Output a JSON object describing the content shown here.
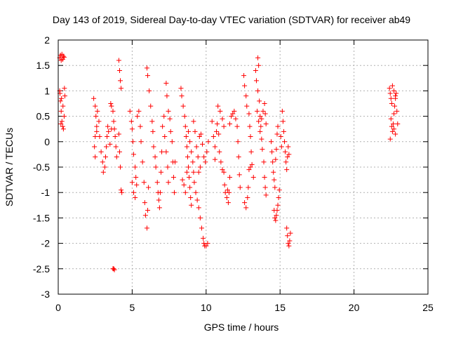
{
  "chart_data": {
    "type": "scatter",
    "title": "Day 143 of 2019, Sidereal Day-to-day VTEC variation (SDTVAR) for receiver ab49",
    "xlabel": "GPS time / hours",
    "ylabel": "SDTVAR / TECUs",
    "xlim": [
      0,
      25
    ],
    "ylim": [
      -3,
      2
    ],
    "xticks": [
      0,
      5,
      10,
      15,
      20,
      25
    ],
    "yticks": [
      -3,
      -2.5,
      -2,
      -1.5,
      -1,
      -0.5,
      0,
      0.5,
      1,
      1.5,
      2
    ],
    "xtick_labels": [
      "0",
      "5",
      "10",
      "15",
      "20",
      "25"
    ],
    "ytick_labels": [
      "-3",
      "-2.5",
      "-2",
      "-1.5",
      "-1",
      "-0.5",
      "0",
      "0.5",
      "1",
      "1.5",
      "2"
    ],
    "grid": true,
    "marker": "+",
    "color": "#ff0000",
    "series": [
      {
        "name": "SDTVAR",
        "points": [
          [
            0.1,
            1.65
          ],
          [
            0.15,
            1.7
          ],
          [
            0.2,
            1.6
          ],
          [
            0.25,
            1.72
          ],
          [
            0.3,
            1.62
          ],
          [
            0.35,
            1.68
          ],
          [
            0.4,
            1.66
          ],
          [
            0.1,
            1.0
          ],
          [
            0.15,
            0.8
          ],
          [
            0.2,
            0.6
          ],
          [
            0.25,
            0.4
          ],
          [
            0.3,
            0.3
          ],
          [
            0.35,
            0.25
          ],
          [
            0.4,
            0.5
          ],
          [
            0.45,
            0.9
          ],
          [
            0.12,
            0.95
          ],
          [
            0.22,
            0.85
          ],
          [
            0.32,
            0.7
          ],
          [
            0.42,
            1.05
          ],
          [
            0.18,
            0.35
          ],
          [
            2.4,
            0.85
          ],
          [
            2.5,
            0.7
          ],
          [
            2.55,
            0.5
          ],
          [
            2.6,
            0.3
          ],
          [
            2.5,
            0.1
          ],
          [
            2.45,
            -0.1
          ],
          [
            2.5,
            -0.3
          ],
          [
            2.6,
            0.2
          ],
          [
            2.65,
            0.6
          ],
          [
            2.75,
            0.4
          ],
          [
            2.8,
            0.1
          ],
          [
            2.9,
            -0.2
          ],
          [
            3.0,
            -0.4
          ],
          [
            3.05,
            -0.6
          ],
          [
            3.15,
            -0.5
          ],
          [
            3.2,
            -0.3
          ],
          [
            3.25,
            -0.1
          ],
          [
            3.3,
            0.1
          ],
          [
            3.35,
            0.3
          ],
          [
            3.4,
            0.2
          ],
          [
            3.5,
            -0.05
          ],
          [
            3.6,
            0.25
          ],
          [
            3.55,
            0.75
          ],
          [
            3.6,
            0.7
          ],
          [
            3.7,
            0.6
          ],
          [
            3.75,
            0.4
          ],
          [
            3.8,
            0.25
          ],
          [
            3.85,
            0.1
          ],
          [
            3.9,
            -0.1
          ],
          [
            3.95,
            -0.3
          ],
          [
            3.7,
            -2.5
          ],
          [
            3.75,
            -2.5
          ],
          [
            3.8,
            -2.52
          ],
          [
            4.1,
            1.6
          ],
          [
            4.15,
            1.4
          ],
          [
            4.2,
            1.2
          ],
          [
            4.25,
            1.05
          ],
          [
            4.1,
            0.15
          ],
          [
            4.15,
            -0.2
          ],
          [
            4.2,
            -0.5
          ],
          [
            4.25,
            -0.95
          ],
          [
            4.3,
            -1.0
          ],
          [
            4.85,
            0.6
          ],
          [
            4.95,
            0.4
          ],
          [
            5.0,
            0.25
          ],
          [
            5.05,
            0.0
          ],
          [
            5.1,
            -0.25
          ],
          [
            5.2,
            -0.5
          ],
          [
            5.25,
            -0.7
          ],
          [
            5.3,
            -0.85
          ],
          [
            5.0,
            -0.8
          ],
          [
            5.1,
            -1.0
          ],
          [
            5.2,
            -1.1
          ],
          [
            5.35,
            0.5
          ],
          [
            5.45,
            0.6
          ],
          [
            5.55,
            0.3
          ],
          [
            5.6,
            0.0
          ],
          [
            5.7,
            -0.4
          ],
          [
            5.8,
            -0.8
          ],
          [
            5.85,
            -1.2
          ],
          [
            5.9,
            -1.45
          ],
          [
            6.0,
            -1.7
          ],
          [
            6.05,
            -1.35
          ],
          [
            6.1,
            -0.9
          ],
          [
            6.0,
            1.45
          ],
          [
            6.05,
            1.3
          ],
          [
            6.15,
            1.0
          ],
          [
            6.25,
            0.7
          ],
          [
            6.35,
            0.4
          ],
          [
            6.4,
            0.2
          ],
          [
            6.45,
            -0.1
          ],
          [
            6.55,
            -0.3
          ],
          [
            6.6,
            -0.5
          ],
          [
            6.7,
            -0.8
          ],
          [
            6.75,
            -1.0
          ],
          [
            6.8,
            -1.15
          ],
          [
            6.85,
            -1.3
          ],
          [
            6.9,
            -1.0
          ],
          [
            6.95,
            -0.6
          ],
          [
            7.0,
            -0.2
          ],
          [
            7.05,
            0.3
          ],
          [
            7.15,
            0.5
          ],
          [
            7.2,
            0.1
          ],
          [
            7.3,
            -0.2
          ],
          [
            7.4,
            -0.5
          ],
          [
            7.45,
            -0.8
          ],
          [
            7.3,
            1.15
          ],
          [
            7.35,
            0.9
          ],
          [
            7.45,
            0.6
          ],
          [
            7.55,
            0.45
          ],
          [
            7.6,
            0.2
          ],
          [
            7.7,
            0.0
          ],
          [
            7.75,
            -0.4
          ],
          [
            7.8,
            -0.7
          ],
          [
            7.85,
            -1.0
          ],
          [
            7.9,
            -0.4
          ],
          [
            8.3,
            1.05
          ],
          [
            8.35,
            0.9
          ],
          [
            8.45,
            0.7
          ],
          [
            8.55,
            0.5
          ],
          [
            8.6,
            0.3
          ],
          [
            8.65,
            0.1
          ],
          [
            8.7,
            -0.1
          ],
          [
            8.75,
            -0.3
          ],
          [
            8.8,
            -0.5
          ],
          [
            8.85,
            -0.7
          ],
          [
            8.9,
            -0.9
          ],
          [
            8.95,
            -1.1
          ],
          [
            9.0,
            -1.25
          ],
          [
            8.4,
            -0.75
          ],
          [
            8.5,
            -0.85
          ],
          [
            8.6,
            -1.0
          ],
          [
            8.7,
            -0.6
          ],
          [
            8.8,
            0.2
          ],
          [
            8.9,
            0.0
          ],
          [
            9.0,
            -0.2
          ],
          [
            9.1,
            -0.4
          ],
          [
            9.15,
            -0.6
          ],
          [
            9.2,
            -0.8
          ],
          [
            9.3,
            -1.0
          ],
          [
            9.4,
            -1.15
          ],
          [
            9.5,
            -1.3
          ],
          [
            9.6,
            -1.5
          ],
          [
            9.7,
            -1.7
          ],
          [
            9.8,
            -1.9
          ],
          [
            9.85,
            -2.0
          ],
          [
            9.9,
            -2.05
          ],
          [
            10.0,
            -2.05
          ],
          [
            10.1,
            -2.0
          ],
          [
            9.15,
            0.4
          ],
          [
            9.25,
            0.2
          ],
          [
            9.35,
            -0.1
          ],
          [
            9.45,
            -0.3
          ],
          [
            9.55,
            0.1
          ],
          [
            9.65,
            0.15
          ],
          [
            9.75,
            -0.05
          ],
          [
            9.85,
            -0.3
          ],
          [
            9.95,
            -0.4
          ],
          [
            10.05,
            -0.2
          ],
          [
            10.15,
            0.0
          ],
          [
            9.5,
            -0.6
          ],
          [
            9.6,
            -0.5
          ],
          [
            10.4,
            0.4
          ],
          [
            10.5,
            0.1
          ],
          [
            10.6,
            -0.1
          ],
          [
            10.7,
            0.2
          ],
          [
            10.75,
            0.35
          ],
          [
            10.85,
            0.15
          ],
          [
            10.9,
            -0.2
          ],
          [
            11.0,
            -0.4
          ],
          [
            11.1,
            -0.55
          ],
          [
            10.6,
            -0.35
          ],
          [
            11.2,
            -0.6
          ],
          [
            11.25,
            -0.85
          ],
          [
            11.3,
            -1.0
          ],
          [
            11.4,
            -1.1
          ],
          [
            11.5,
            -1.2
          ],
          [
            11.45,
            -0.95
          ],
          [
            11.55,
            -1.0
          ],
          [
            11.6,
            -0.7
          ],
          [
            10.8,
            0.7
          ],
          [
            10.95,
            0.6
          ],
          [
            11.1,
            0.45
          ],
          [
            11.2,
            0.3
          ],
          [
            11.6,
            0.35
          ],
          [
            11.7,
            0.5
          ],
          [
            11.8,
            0.55
          ],
          [
            11.9,
            0.6
          ],
          [
            12.0,
            0.45
          ],
          [
            12.1,
            0.3
          ],
          [
            12.15,
            0.0
          ],
          [
            12.2,
            -0.3
          ],
          [
            12.25,
            -0.65
          ],
          [
            12.3,
            -0.9
          ],
          [
            12.55,
            1.3
          ],
          [
            12.6,
            1.1
          ],
          [
            12.7,
            0.9
          ],
          [
            12.75,
            0.7
          ],
          [
            12.6,
            -1.2
          ],
          [
            12.7,
            -1.3
          ],
          [
            12.8,
            -1.1
          ],
          [
            12.85,
            -0.9
          ],
          [
            12.9,
            0.55
          ],
          [
            12.95,
            0.3
          ],
          [
            13.0,
            0.1
          ],
          [
            13.05,
            -0.2
          ],
          [
            13.1,
            -0.45
          ],
          [
            13.2,
            -0.7
          ],
          [
            12.9,
            -0.55
          ],
          [
            13.0,
            -0.5
          ],
          [
            13.35,
            1.4
          ],
          [
            13.4,
            1.2
          ],
          [
            13.5,
            1.0
          ],
          [
            13.6,
            0.8
          ],
          [
            13.65,
            0.5
          ],
          [
            13.7,
            0.3
          ],
          [
            13.75,
            0.05
          ],
          [
            13.8,
            -0.15
          ],
          [
            13.5,
            1.65
          ],
          [
            13.55,
            1.5
          ],
          [
            13.45,
            0.6
          ],
          [
            13.55,
            0.4
          ],
          [
            13.65,
            0.2
          ],
          [
            13.75,
            0.45
          ],
          [
            13.85,
            0.6
          ],
          [
            13.95,
            0.75
          ],
          [
            14.0,
            0.55
          ],
          [
            14.05,
            0.35
          ],
          [
            13.9,
            -0.4
          ],
          [
            13.95,
            -0.7
          ],
          [
            14.0,
            -0.9
          ],
          [
            14.05,
            -1.05
          ],
          [
            14.4,
            0.0
          ],
          [
            14.45,
            -0.2
          ],
          [
            14.5,
            -0.4
          ],
          [
            14.55,
            -0.6
          ],
          [
            14.6,
            -0.75
          ],
          [
            14.65,
            -0.9
          ],
          [
            14.7,
            -0.35
          ],
          [
            14.75,
            -0.15
          ],
          [
            14.8,
            0.15
          ],
          [
            14.85,
            0.3
          ],
          [
            14.6,
            -1.35
          ],
          [
            14.65,
            -1.5
          ],
          [
            14.7,
            -1.55
          ],
          [
            14.75,
            -1.45
          ],
          [
            14.8,
            -1.35
          ],
          [
            14.85,
            -1.25
          ],
          [
            14.9,
            -1.1
          ],
          [
            14.95,
            -0.95
          ],
          [
            15.05,
            0.1
          ],
          [
            15.1,
            -0.1
          ],
          [
            15.15,
            0.6
          ],
          [
            15.2,
            0.4
          ],
          [
            15.25,
            0.2
          ],
          [
            15.3,
            0.0
          ],
          [
            15.35,
            -0.2
          ],
          [
            15.4,
            -0.4
          ],
          [
            15.45,
            -0.55
          ],
          [
            15.5,
            -0.3
          ],
          [
            15.55,
            -0.1
          ],
          [
            15.6,
            -0.25
          ],
          [
            15.5,
            -1.85
          ],
          [
            15.55,
            -2.0
          ],
          [
            15.6,
            -2.05
          ],
          [
            15.65,
            -1.95
          ],
          [
            15.7,
            -1.8
          ],
          [
            15.45,
            -1.7
          ],
          [
            22.4,
            1.05
          ],
          [
            22.45,
            0.95
          ],
          [
            22.5,
            0.85
          ],
          [
            22.55,
            0.75
          ],
          [
            22.5,
            0.45
          ],
          [
            22.55,
            0.3
          ],
          [
            22.6,
            0.2
          ],
          [
            22.65,
            0.35
          ],
          [
            22.7,
            0.55
          ],
          [
            22.75,
            0.7
          ],
          [
            22.8,
            0.85
          ],
          [
            22.85,
            0.95
          ],
          [
            22.9,
            0.6
          ],
          [
            22.95,
            0.35
          ],
          [
            22.7,
            0.25
          ],
          [
            22.8,
            0.15
          ],
          [
            22.45,
            0.05
          ],
          [
            22.6,
            1.1
          ],
          [
            22.7,
            1.0
          ],
          [
            22.8,
            0.9
          ]
        ]
      }
    ]
  }
}
